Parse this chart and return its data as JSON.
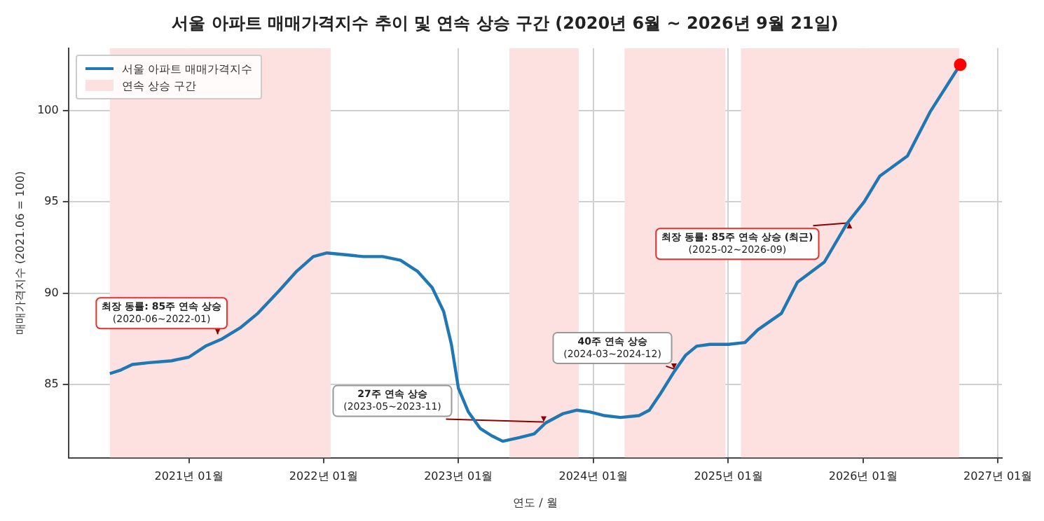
{
  "chart_data": {
    "type": "line",
    "title": "서울 아파트 매매가격지수 추이 및 연속 상승 구간 (2020년 6월 ~ 2026년 9월 21일)",
    "xlabel": "연도 / 월",
    "ylabel": "매매가격지수 (2021.06 = 100)",
    "series": [
      {
        "name": "서울 아파트 매매가격지수",
        "color": "#1f77b4",
        "marker": "none",
        "x": [
          "2020-06-01",
          "2020-07-01",
          "2020-08-01",
          "2020-09-15",
          "2020-11-15",
          "2021-01-01",
          "2021-02-15",
          "2021-04-01",
          "2021-05-20",
          "2021-07-07",
          "2021-09-01",
          "2021-10-20",
          "2021-12-04",
          "2022-01-10",
          "2022-03-01",
          "2022-04-18",
          "2022-06-10",
          "2022-07-28",
          "2022-09-12",
          "2022-10-22",
          "2022-11-22",
          "2022-12-13",
          "2023-01-01",
          "2023-01-28",
          "2023-03-01",
          "2023-04-01",
          "2023-05-01",
          "2023-06-15",
          "2023-07-25",
          "2023-08-25",
          "2023-10-10",
          "2023-11-18",
          "2023-12-24",
          "2024-02-01",
          "2024-03-15",
          "2024-05-04",
          "2024-06-01",
          "2024-07-01",
          "2024-08-07",
          "2024-09-07",
          "2024-10-07",
          "2024-11-12",
          "2025-01-01",
          "2025-02-15",
          "2025-03-22",
          "2025-05-25",
          "2025-07-07",
          "2025-09-18",
          "2025-11-18",
          "2026-01-04",
          "2026-02-15",
          "2026-05-01",
          "2026-07-01",
          "2026-09-21"
        ],
        "values": [
          85.6,
          85.8,
          86.1,
          86.2,
          86.3,
          86.5,
          87.1,
          87.5,
          88.1,
          88.9,
          90.1,
          91.2,
          92.0,
          92.2,
          92.1,
          92.0,
          92.0,
          91.8,
          91.2,
          90.3,
          89.0,
          87.2,
          84.8,
          83.5,
          82.6,
          82.2,
          81.9,
          82.1,
          82.3,
          82.9,
          83.4,
          83.6,
          83.5,
          83.3,
          83.2,
          83.3,
          83.6,
          84.5,
          85.7,
          86.6,
          87.1,
          87.2,
          87.2,
          87.3,
          88.0,
          88.9,
          90.6,
          91.7,
          93.8,
          95.0,
          96.4,
          97.5,
          99.9,
          102.5
        ]
      },
      {
        "color": "#ff0000",
        "type": "scatter",
        "marker": "circle",
        "x": [
          "2026-09-21"
        ],
        "values": [
          102.5
        ]
      }
    ],
    "xlim": [
      "2020-02-10",
      "2027-01-12"
    ],
    "xticks": [
      {
        "value": "2021-01-01",
        "label": "2021년 01월"
      },
      {
        "value": "2022-01-01",
        "label": "2022년 01월"
      },
      {
        "value": "2023-01-01",
        "label": "2023년 01월"
      },
      {
        "value": "2024-01-01",
        "label": "2024년 01월"
      },
      {
        "value": "2025-01-01",
        "label": "2025년 01월"
      },
      {
        "value": "2026-01-01",
        "label": "2026년 01월"
      },
      {
        "value": "2027-01-01",
        "label": "2027년 01월"
      }
    ],
    "ylim": [
      81.0,
      103.4
    ],
    "yticks": [
      85,
      90,
      95,
      100
    ],
    "bands": [
      {
        "axis": "x",
        "from": "2020-06-01",
        "to": "2022-01-20",
        "color": "#fde0e0",
        "label": "연속 상승 구간"
      },
      {
        "axis": "x",
        "from": "2023-05-19",
        "to": "2023-11-23",
        "color": "#fde0e0"
      },
      {
        "axis": "x",
        "from": "2024-03-26",
        "to": "2024-12-24",
        "color": "#fde0e0"
      },
      {
        "axis": "x",
        "from": "2025-02-04",
        "to": "2026-09-18",
        "color": "#fde0e0"
      }
    ],
    "annotations": [
      {
        "text": "최장 동률: 85주 연속 상승\n(2020-06~2022-01)",
        "x": "2021-03-20",
        "y": 87.6
      },
      {
        "text": "27주 연속 상승\n(2023-05~2023-11)",
        "x": "2023-08-20",
        "y": 82.8
      },
      {
        "text": "40주 연속 상승\n(2024-03~2024-12)",
        "x": "2024-08-07",
        "y": 85.7
      },
      {
        "text": "최장 동률: 85주 연속 상승 (최근)\n(2025-02~2026-09)",
        "x": "2025-11-25",
        "y": 94.0
      }
    ],
    "grid": true,
    "legend": "top left",
    "line_style": "solid"
  }
}
